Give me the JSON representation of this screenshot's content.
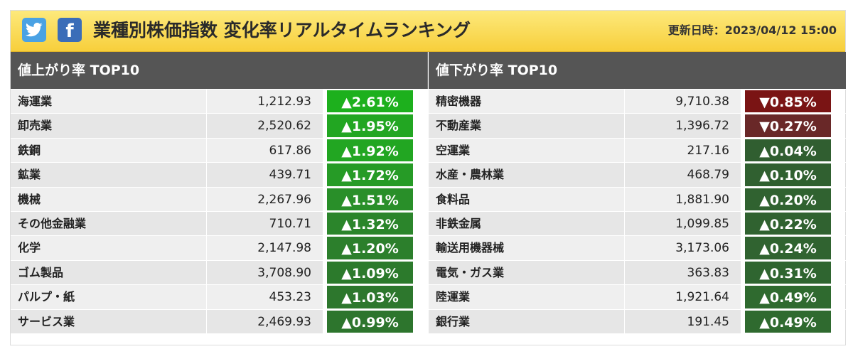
{
  "header": {
    "title": "業種別株価指数 変化率リアルタイムランキング",
    "updated": "更新日時：2023/04/12 15:00",
    "twitter_icon": "twitter-bird-icon",
    "facebook_icon": "facebook-f-icon",
    "facebook_glyph": "f"
  },
  "gainers": {
    "heading": "値上がり率 TOP10",
    "rows": [
      {
        "name": "海運業",
        "value": "1,212.93",
        "change": "▲2.61%",
        "color": "#1db01d"
      },
      {
        "name": "卸売業",
        "value": "2,520.62",
        "change": "▲1.95%",
        "color": "#22a622"
      },
      {
        "name": "鉄鋼",
        "value": "617.86",
        "change": "▲1.92%",
        "color": "#22a622"
      },
      {
        "name": "鉱業",
        "value": "439.71",
        "change": "▲1.72%",
        "color": "#269b26"
      },
      {
        "name": "機械",
        "value": "2,267.96",
        "change": "▲1.51%",
        "color": "#298f29"
      },
      {
        "name": "その他金融業",
        "value": "710.71",
        "change": "▲1.32%",
        "color": "#2b852b"
      },
      {
        "name": "化学",
        "value": "2,147.98",
        "change": "▲1.20%",
        "color": "#2c7f2c"
      },
      {
        "name": "ゴム製品",
        "value": "3,708.90",
        "change": "▲1.09%",
        "color": "#2c7a2c"
      },
      {
        "name": "パルプ・紙",
        "value": "453.23",
        "change": "▲1.03%",
        "color": "#2d772d"
      },
      {
        "name": "サービス業",
        "value": "2,469.93",
        "change": "▲0.99%",
        "color": "#2d752d"
      }
    ]
  },
  "losers": {
    "heading": "値下がり率 TOP10",
    "rows": [
      {
        "name": "精密機器",
        "value": "9,710.38",
        "change": "▼0.85%",
        "color": "#7a1414"
      },
      {
        "name": "不動産業",
        "value": "1,396.72",
        "change": "▼0.27%",
        "color": "#692828"
      },
      {
        "name": "空運業",
        "value": "217.16",
        "change": "▲0.04%",
        "color": "#305e30"
      },
      {
        "name": "水産・農林業",
        "value": "468.79",
        "change": "▲0.10%",
        "color": "#306030"
      },
      {
        "name": "食料品",
        "value": "1,881.90",
        "change": "▲0.20%",
        "color": "#306230"
      },
      {
        "name": "非鉄金属",
        "value": "1,099.85",
        "change": "▲0.22%",
        "color": "#306230"
      },
      {
        "name": "輸送用機器械",
        "value": "3,173.06",
        "change": "▲0.24%",
        "color": "#306330"
      },
      {
        "name": "電気・ガス業",
        "value": "363.83",
        "change": "▲0.31%",
        "color": "#2f6530"
      },
      {
        "name": "陸運業",
        "value": "1,921.64",
        "change": "▲0.49%",
        "color": "#2f6a2f"
      },
      {
        "name": "銀行業",
        "value": "191.45",
        "change": "▲0.49%",
        "color": "#2f6a2f"
      }
    ]
  }
}
